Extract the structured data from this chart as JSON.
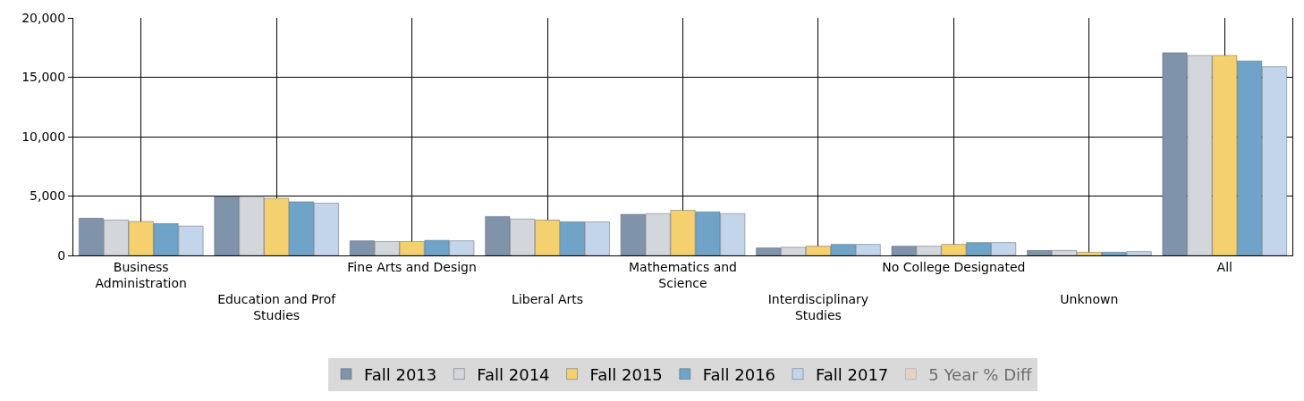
{
  "chart_data": {
    "type": "bar",
    "categories": [
      "Business Administration",
      "Education and Prof Studies",
      "Fine Arts and Design",
      "Liberal Arts",
      "Mathematics and Science",
      "Interdisciplinary Studies",
      "No College Designated",
      "Unknown",
      "All"
    ],
    "series": [
      {
        "name": "Fall 2013",
        "color": "#7f93ab",
        "values": [
          3130,
          4970,
          1230,
          3280,
          3460,
          630,
          780,
          420,
          17060
        ]
      },
      {
        "name": "Fall 2014",
        "color": "#d3d6da",
        "values": [
          2980,
          4970,
          1170,
          3070,
          3520,
          690,
          780,
          420,
          16830
        ]
      },
      {
        "name": "Fall 2015",
        "color": "#f5d06e",
        "values": [
          2860,
          4820,
          1170,
          2980,
          3800,
          780,
          930,
          270,
          16830
        ]
      },
      {
        "name": "Fall 2016",
        "color": "#6fa3c8",
        "values": [
          2680,
          4520,
          1270,
          2830,
          3670,
          930,
          1080,
          270,
          16370
        ]
      },
      {
        "name": "Fall 2017",
        "color": "#c3d5ea",
        "values": [
          2470,
          4400,
          1230,
          2830,
          3520,
          930,
          1080,
          330,
          15890
        ]
      },
      {
        "name": "5 Year % Diff",
        "color": "#ecd0b0",
        "values": [
          null,
          null,
          null,
          null,
          null,
          null,
          null,
          null,
          null
        ]
      }
    ],
    "ylim": [
      0,
      20000
    ],
    "yticks": [
      {
        "value": 0,
        "label": "0"
      },
      {
        "value": 5000,
        "label": "5,000"
      },
      {
        "value": 10000,
        "label": "10,000"
      },
      {
        "value": 15000,
        "label": "15,000"
      },
      {
        "value": 20000,
        "label": "20,000"
      }
    ],
    "grid": true,
    "legend": "bottom"
  }
}
